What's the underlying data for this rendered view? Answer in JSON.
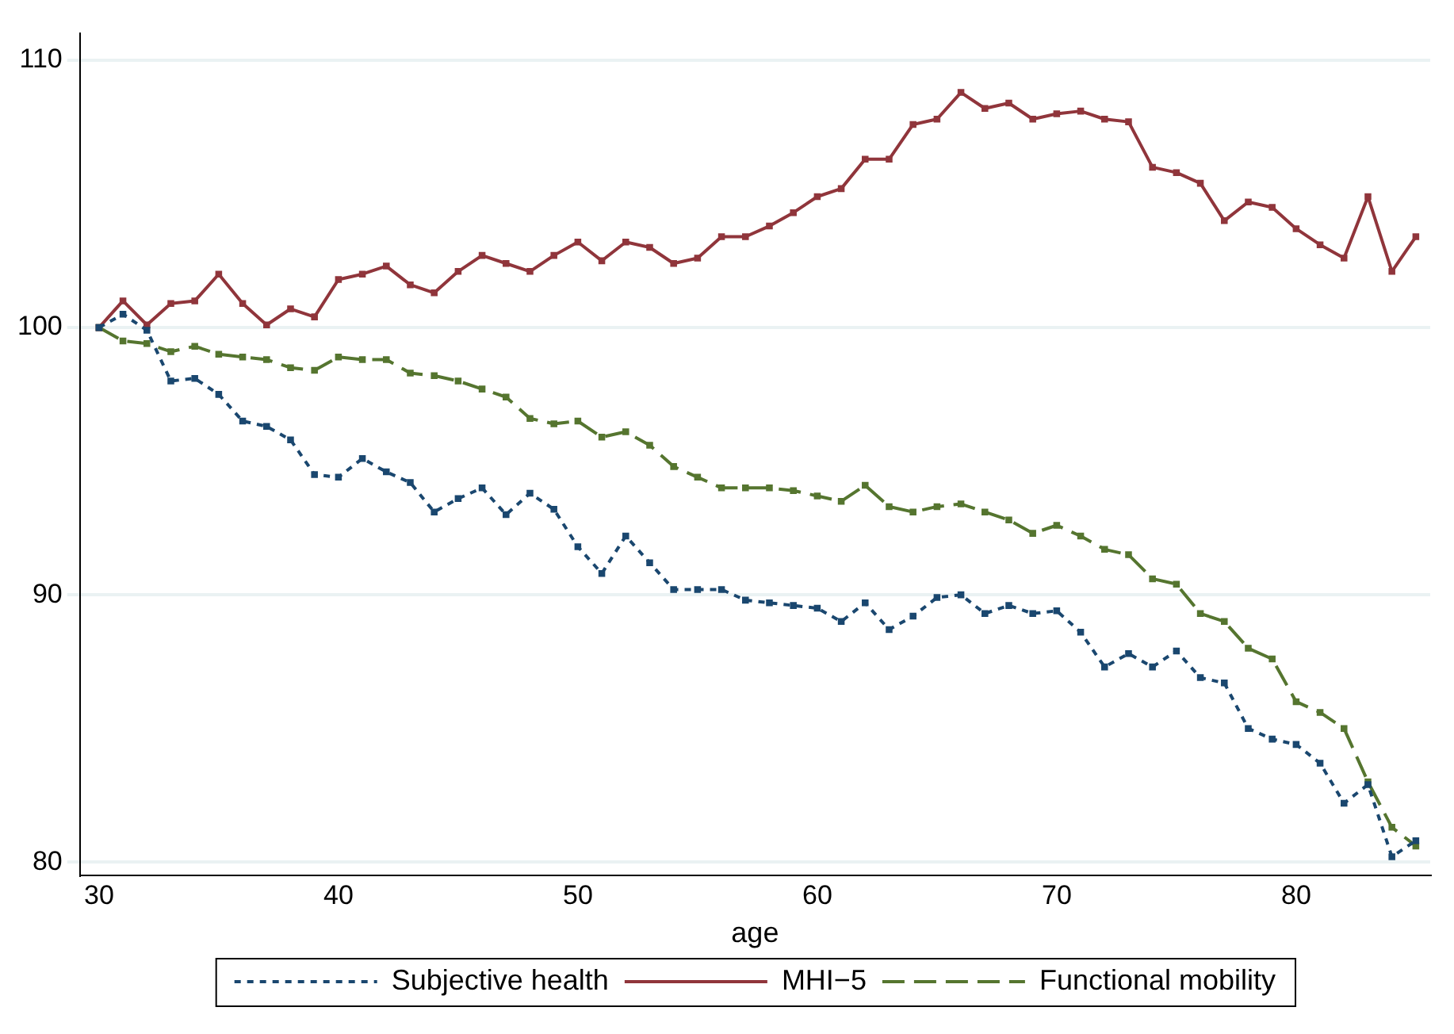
{
  "chart_data": {
    "type": "line",
    "xlabel": "age",
    "x": [
      30,
      31,
      32,
      33,
      34,
      35,
      36,
      37,
      38,
      39,
      40,
      41,
      42,
      43,
      44,
      45,
      46,
      47,
      48,
      49,
      50,
      51,
      52,
      53,
      54,
      55,
      56,
      57,
      58,
      59,
      60,
      61,
      62,
      63,
      64,
      65,
      66,
      67,
      68,
      69,
      70,
      71,
      72,
      73,
      74,
      75,
      76,
      77,
      78,
      79,
      80,
      81,
      82,
      83,
      84,
      85
    ],
    "xlim": [
      29.2,
      85.6
    ],
    "xticks": [
      30,
      40,
      50,
      60,
      70,
      80
    ],
    "ylim": [
      79.5,
      111
    ],
    "yticks": [
      80,
      90,
      100,
      110
    ],
    "grid": "y",
    "legend": "bottom",
    "marker": "square",
    "series": [
      {
        "name": "Subjective health",
        "color": "#1a476f",
        "line_style": "dotted",
        "values": [
          100,
          100.5,
          99.9,
          98,
          98.1,
          97.5,
          96.5,
          96.3,
          95.8,
          94.5,
          94.4,
          95.1,
          94.6,
          94.2,
          93.1,
          93.6,
          94,
          93,
          93.8,
          93.2,
          91.8,
          90.8,
          92.2,
          91.2,
          90.2,
          90.2,
          90.2,
          89.8,
          89.7,
          89.6,
          89.5,
          89,
          89.7,
          88.7,
          89.2,
          89.9,
          90,
          89.3,
          89.6,
          89.3,
          89.4,
          88.6,
          87.3,
          87.8,
          87.3,
          87.9,
          86.9,
          86.7,
          85,
          84.6,
          84.4,
          83.7,
          82.2,
          82.9,
          80.2,
          80.8
        ]
      },
      {
        "name": "MHI−5",
        "color": "#90353b",
        "line_style": "solid",
        "values": [
          100,
          101,
          100.1,
          100.9,
          101,
          102,
          100.9,
          100.1,
          100.7,
          100.4,
          101.8,
          102,
          102.3,
          101.6,
          101.3,
          102.1,
          102.7,
          102.4,
          102.1,
          102.7,
          103.2,
          102.5,
          103.2,
          103,
          102.4,
          102.6,
          103.4,
          103.4,
          103.8,
          104.3,
          104.9,
          105.2,
          106.3,
          106.3,
          107.6,
          107.8,
          108.8,
          108.2,
          108.4,
          107.8,
          108,
          108.1,
          107.8,
          107.7,
          106,
          105.8,
          105.4,
          104,
          104.7,
          104.5,
          103.7,
          103.1,
          102.6,
          104.9,
          102.1,
          103.4
        ]
      },
      {
        "name": "Functional mobility",
        "color": "#55752f",
        "line_style": "dashed",
        "values": [
          100,
          99.5,
          99.4,
          99.1,
          99.3,
          99,
          98.9,
          98.8,
          98.5,
          98.4,
          98.9,
          98.8,
          98.8,
          98.3,
          98.2,
          98,
          97.7,
          97.4,
          96.6,
          96.4,
          96.5,
          95.9,
          96.1,
          95.6,
          94.8,
          94.4,
          94,
          94,
          94,
          93.9,
          93.7,
          93.5,
          94.1,
          93.3,
          93.1,
          93.3,
          93.4,
          93.1,
          92.8,
          92.3,
          92.6,
          92.2,
          91.7,
          91.5,
          90.6,
          90.4,
          89.3,
          89,
          88,
          87.6,
          86,
          85.6,
          85,
          83,
          81.3,
          80.6
        ]
      }
    ]
  }
}
